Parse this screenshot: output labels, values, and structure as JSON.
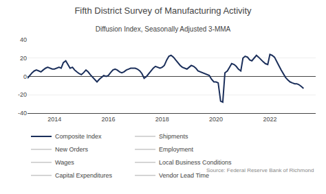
{
  "chart_data": {
    "type": "line",
    "title": "Fifth District Survey of Manufacturing Activity",
    "subtitle": "Diffusion Index, Seasonally Adjusted 3-MMA",
    "source": "Source: Federal Reserve Bank of Richmond",
    "x": [
      2013.0,
      2013.08,
      2013.17,
      2013.25,
      2013.33,
      2013.42,
      2013.5,
      2013.58,
      2013.67,
      2013.75,
      2013.83,
      2013.92,
      2014.0,
      2014.08,
      2014.17,
      2014.25,
      2014.33,
      2014.42,
      2014.5,
      2014.58,
      2014.67,
      2014.75,
      2014.83,
      2014.92,
      2015.0,
      2015.08,
      2015.17,
      2015.25,
      2015.33,
      2015.42,
      2015.5,
      2015.58,
      2015.67,
      2015.75,
      2015.83,
      2015.92,
      2016.0,
      2016.08,
      2016.17,
      2016.25,
      2016.33,
      2016.42,
      2016.5,
      2016.58,
      2016.67,
      2016.75,
      2016.83,
      2016.92,
      2017.0,
      2017.08,
      2017.17,
      2017.25,
      2017.33,
      2017.42,
      2017.5,
      2017.58,
      2017.67,
      2017.75,
      2017.83,
      2017.92,
      2018.0,
      2018.08,
      2018.17,
      2018.25,
      2018.33,
      2018.42,
      2018.5,
      2018.58,
      2018.67,
      2018.75,
      2018.83,
      2018.92,
      2019.0,
      2019.08,
      2019.17,
      2019.25,
      2019.33,
      2019.42,
      2019.5,
      2019.58,
      2019.67,
      2019.75,
      2019.83,
      2019.92,
      2020.0,
      2020.08,
      2020.17,
      2020.25,
      2020.33,
      2020.42,
      2020.5,
      2020.58,
      2020.67,
      2020.75,
      2020.83,
      2020.92,
      2021.0,
      2021.08,
      2021.17,
      2021.25,
      2021.33,
      2021.42,
      2021.5,
      2021.58,
      2021.67,
      2021.75,
      2021.83,
      2021.92,
      2022.0,
      2022.08,
      2022.17,
      2022.25,
      2022.33,
      2022.42,
      2022.5,
      2022.58,
      2022.67,
      2022.75,
      2022.83,
      2022.92,
      2023.0,
      2023.08,
      2023.17,
      2023.25
    ],
    "series": [
      {
        "name": "Composite Index",
        "color": "#1a2e5a",
        "values": [
          -2,
          1,
          4,
          6,
          7,
          6,
          5,
          7,
          9,
          10,
          9,
          8,
          8,
          9,
          10,
          9,
          15,
          17,
          13,
          9,
          10,
          7,
          5,
          3,
          2,
          4,
          7,
          5,
          2,
          -1,
          -4,
          -6,
          -3,
          -1,
          1,
          0,
          1,
          4,
          7,
          8,
          7,
          5,
          4,
          5,
          7,
          8,
          9,
          9,
          9,
          8,
          6,
          3,
          -2,
          0,
          3,
          6,
          9,
          11,
          10,
          9,
          10,
          12,
          18,
          22,
          23,
          21,
          18,
          15,
          12,
          10,
          9,
          8,
          10,
          12,
          11,
          9,
          6,
          5,
          4,
          3,
          2,
          1,
          -3,
          -6,
          -6,
          -7,
          -27,
          -28,
          4,
          6,
          10,
          14,
          13,
          11,
          8,
          6,
          20,
          22,
          21,
          18,
          17,
          20,
          23,
          21,
          18,
          16,
          14,
          13,
          24,
          23,
          21,
          16,
          12,
          7,
          3,
          -1,
          -4,
          -6,
          -7,
          -8,
          -8,
          -9,
          -11,
          -13
        ]
      },
      {
        "name": "Shipments",
        "color": "#bbbbbb",
        "values": [
          null,
          null,
          null,
          null,
          null,
          null,
          null,
          null,
          null,
          null,
          null,
          null,
          null,
          null,
          null,
          null,
          null,
          null,
          null,
          null,
          null,
          null,
          null,
          null,
          null,
          null,
          null,
          null,
          null,
          null,
          null,
          null,
          null,
          null,
          null,
          null,
          null,
          null,
          null,
          null,
          null,
          null,
          null,
          null,
          null,
          null,
          null,
          null,
          null,
          null,
          null,
          null,
          null,
          null,
          null,
          null,
          null,
          null,
          null,
          null,
          null,
          null,
          null,
          null,
          null,
          null,
          null,
          null,
          null,
          null,
          null,
          null,
          null,
          null,
          null,
          null,
          null,
          null,
          null,
          null,
          null,
          null,
          null,
          null,
          null,
          null,
          null,
          null,
          null,
          null,
          null,
          null,
          null,
          null,
          null,
          null,
          null,
          null,
          null,
          null,
          null,
          null,
          null,
          null,
          null,
          null,
          null,
          null,
          null,
          null,
          null,
          null,
          null,
          null,
          null,
          null,
          null,
          null,
          null,
          null,
          null,
          null,
          null,
          null
        ]
      },
      {
        "name": "New Orders",
        "color": "#bbbbbb",
        "values": [
          null,
          null,
          null,
          null,
          null,
          null,
          null,
          null,
          null,
          null,
          null,
          null,
          null,
          null,
          null,
          null,
          null,
          null,
          null,
          null,
          null,
          null,
          null,
          null,
          null,
          null,
          null,
          null,
          null,
          null,
          null,
          null,
          null,
          null,
          null,
          null,
          null,
          null,
          null,
          null,
          null,
          null,
          null,
          null,
          null,
          null,
          null,
          null,
          null,
          null,
          null,
          null,
          null,
          null,
          null,
          null,
          null,
          null,
          null,
          null,
          null,
          null,
          null,
          null,
          null,
          null,
          null,
          null,
          null,
          null,
          null,
          null,
          null,
          null,
          null,
          null,
          null,
          null,
          null,
          null,
          null,
          null,
          null,
          null,
          null,
          null,
          null,
          null,
          null,
          null,
          null,
          null,
          null,
          null,
          null,
          null,
          null,
          null,
          null,
          null,
          null,
          null,
          null,
          null,
          null,
          null,
          null,
          null,
          null,
          null,
          null,
          null,
          null,
          null,
          null,
          null,
          null,
          null,
          null,
          null,
          null,
          null,
          null,
          null
        ]
      },
      {
        "name": "Employment",
        "color": "#bbbbbb",
        "values": [
          null,
          null,
          null,
          null,
          null,
          null,
          null,
          null,
          null,
          null,
          null,
          null,
          null,
          null,
          null,
          null,
          null,
          null,
          null,
          null,
          null,
          null,
          null,
          null,
          null,
          null,
          null,
          null,
          null,
          null,
          null,
          null,
          null,
          null,
          null,
          null,
          null,
          null,
          null,
          null,
          null,
          null,
          null,
          null,
          null,
          null,
          null,
          null,
          null,
          null,
          null,
          null,
          null,
          null,
          null,
          null,
          null,
          null,
          null,
          null,
          null,
          null,
          null,
          null,
          null,
          null,
          null,
          null,
          null,
          null,
          null,
          null,
          null,
          null,
          null,
          null,
          null,
          null,
          null,
          null,
          null,
          null,
          null,
          null,
          null,
          null,
          null,
          null,
          null,
          null,
          null,
          null,
          null,
          null,
          null,
          null,
          null,
          null,
          null,
          null,
          null,
          null,
          null,
          null,
          null,
          null,
          null,
          null,
          null,
          null,
          null,
          null,
          null,
          null,
          null,
          null,
          null,
          null,
          null,
          null,
          null,
          null,
          null,
          null
        ]
      },
      {
        "name": "Wages",
        "color": "#bbbbbb",
        "values": [
          null,
          null,
          null,
          null,
          null,
          null,
          null,
          null,
          null,
          null,
          null,
          null,
          null,
          null,
          null,
          null,
          null,
          null,
          null,
          null,
          null,
          null,
          null,
          null,
          null,
          null,
          null,
          null,
          null,
          null,
          null,
          null,
          null,
          null,
          null,
          null,
          null,
          null,
          null,
          null,
          null,
          null,
          null,
          null,
          null,
          null,
          null,
          null,
          null,
          null,
          null,
          null,
          null,
          null,
          null,
          null,
          null,
          null,
          null,
          null,
          null,
          null,
          null,
          null,
          null,
          null,
          null,
          null,
          null,
          null,
          null,
          null,
          null,
          null,
          null,
          null,
          null,
          null,
          null,
          null,
          null,
          null,
          null,
          null,
          null,
          null,
          null,
          null,
          null,
          null,
          null,
          null,
          null,
          null,
          null,
          null,
          null,
          null,
          null,
          null,
          null,
          null,
          null,
          null,
          null,
          null,
          null,
          null,
          null,
          null,
          null,
          null,
          null,
          null,
          null,
          null,
          null,
          null,
          null,
          null,
          null,
          null,
          null,
          null
        ]
      },
      {
        "name": "Local Business Conditions",
        "color": "#bbbbbb",
        "values": [
          null,
          null,
          null,
          null,
          null,
          null,
          null,
          null,
          null,
          null,
          null,
          null,
          null,
          null,
          null,
          null,
          null,
          null,
          null,
          null,
          null,
          null,
          null,
          null,
          null,
          null,
          null,
          null,
          null,
          null,
          null,
          null,
          null,
          null,
          null,
          null,
          null,
          null,
          null,
          null,
          null,
          null,
          null,
          null,
          null,
          null,
          null,
          null,
          null,
          null,
          null,
          null,
          null,
          null,
          null,
          null,
          null,
          null,
          null,
          null,
          null,
          null,
          null,
          null,
          null,
          null,
          null,
          null,
          null,
          null,
          null,
          null,
          null,
          null,
          null,
          null,
          null,
          null,
          null,
          null,
          null,
          null,
          null,
          null,
          null,
          null,
          null,
          null,
          null,
          null,
          null,
          null,
          null,
          null,
          null,
          null,
          null,
          null,
          null,
          null,
          null,
          null,
          null,
          null,
          null,
          null,
          null,
          null,
          null,
          null,
          null,
          null,
          null,
          null,
          null,
          null,
          null,
          null,
          null,
          null,
          null,
          null,
          null,
          null
        ]
      },
      {
        "name": "Capital Expenditures",
        "color": "#bbbbbb",
        "values": [
          null,
          null,
          null,
          null,
          null,
          null,
          null,
          null,
          null,
          null,
          null,
          null,
          null,
          null,
          null,
          null,
          null,
          null,
          null,
          null,
          null,
          null,
          null,
          null,
          null,
          null,
          null,
          null,
          null,
          null,
          null,
          null,
          null,
          null,
          null,
          null,
          null,
          null,
          null,
          null,
          null,
          null,
          null,
          null,
          null,
          null,
          null,
          null,
          null,
          null,
          null,
          null,
          null,
          null,
          null,
          null,
          null,
          null,
          null,
          null,
          null,
          null,
          null,
          null,
          null,
          null,
          null,
          null,
          null,
          null,
          null,
          null,
          null,
          null,
          null,
          null,
          null,
          null,
          null,
          null,
          null,
          null,
          null,
          null,
          null,
          null,
          null,
          null,
          null,
          null,
          null,
          null,
          null,
          null,
          null,
          null,
          null,
          null,
          null,
          null,
          null,
          null,
          null,
          null,
          null,
          null,
          null,
          null,
          null,
          null,
          null,
          null,
          null,
          null,
          null,
          null,
          null,
          null,
          null,
          null,
          null,
          null,
          null,
          null
        ]
      },
      {
        "name": "Vendor Lead Time",
        "color": "#bbbbbb",
        "values": [
          null,
          null,
          null,
          null,
          null,
          null,
          null,
          null,
          null,
          null,
          null,
          null,
          null,
          null,
          null,
          null,
          null,
          null,
          null,
          null,
          null,
          null,
          null,
          null,
          null,
          null,
          null,
          null,
          null,
          null,
          null,
          null,
          null,
          null,
          null,
          null,
          null,
          null,
          null,
          null,
          null,
          null,
          null,
          null,
          null,
          null,
          null,
          null,
          null,
          null,
          null,
          null,
          null,
          null,
          null,
          null,
          null,
          null,
          null,
          null,
          null,
          null,
          null,
          null,
          null,
          null,
          null,
          null,
          null,
          null,
          null,
          null,
          null,
          null,
          null,
          null,
          null,
          null,
          null,
          null,
          null,
          null,
          null,
          null,
          null,
          null,
          null,
          null,
          null,
          null,
          null,
          null,
          null,
          null,
          null,
          null,
          null,
          null,
          null,
          null,
          null,
          null,
          null,
          null,
          null,
          null,
          null,
          null,
          null,
          null,
          null,
          null,
          null,
          null,
          null,
          null,
          null,
          null,
          null,
          null,
          null,
          null,
          null,
          null
        ]
      }
    ],
    "xlim": [
      2013.0,
      2023.7
    ],
    "xticks": [
      2014,
      2016,
      2018,
      2020,
      2022
    ],
    "ylim": [
      -40,
      40
    ],
    "yticks": [
      -40,
      -20,
      0,
      20,
      40
    ],
    "grid": true,
    "legend": "bottom"
  }
}
